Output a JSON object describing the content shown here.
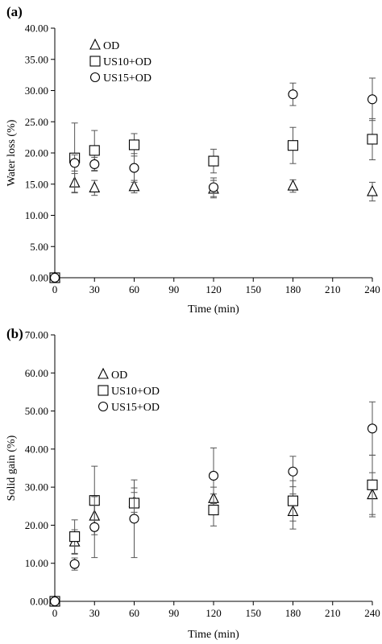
{
  "chart_data": [
    {
      "type": "scatter",
      "panel_label": "(a)",
      "xlabel": "Time (min)",
      "ylabel": "Water loss (%)",
      "xlim": [
        0,
        240
      ],
      "ylim": [
        0,
        40
      ],
      "xticks": [
        0,
        30,
        60,
        90,
        120,
        150,
        180,
        210,
        240
      ],
      "yticks": [
        "0.00",
        "5.00",
        "10.00",
        "15.00",
        "20.00",
        "25.00",
        "30.00",
        "35.00",
        "40.00"
      ],
      "legend_position": "top-left",
      "grid": false,
      "series": [
        {
          "name": "OD",
          "marker": "triangle",
          "x": [
            0,
            15,
            30,
            60,
            120,
            180,
            240
          ],
          "y": [
            0,
            15.2,
            14.4,
            14.6,
            14.2,
            14.7,
            13.8
          ],
          "err": [
            0,
            1.5,
            1.2,
            1.0,
            1.4,
            1.0,
            1.5
          ]
        },
        {
          "name": "US10+OD",
          "marker": "square",
          "x": [
            0,
            15,
            30,
            60,
            120,
            180,
            240
          ],
          "y": [
            0,
            19.2,
            20.4,
            21.3,
            18.7,
            21.2,
            22.2
          ],
          "err": [
            0,
            5.6,
            3.2,
            1.8,
            1.9,
            2.9,
            3.3
          ]
        },
        {
          "name": "US15+OD",
          "marker": "circle",
          "x": [
            0,
            15,
            30,
            60,
            120,
            180,
            240
          ],
          "y": [
            0,
            18.4,
            18.2,
            17.6,
            14.5,
            29.4,
            28.6
          ],
          "err": [
            0,
            1.3,
            1.1,
            2.3,
            1.5,
            1.8,
            3.4
          ]
        }
      ]
    },
    {
      "type": "scatter",
      "panel_label": "(b)",
      "xlabel": "Time (min)",
      "ylabel": "Solid gain (%)",
      "xlim": [
        0,
        240
      ],
      "ylim": [
        0,
        70
      ],
      "xticks": [
        0,
        30,
        60,
        90,
        120,
        150,
        180,
        210,
        240
      ],
      "yticks": [
        "0.00",
        "10.00",
        "20.00",
        "30.00",
        "40.00",
        "50.00",
        "60.00",
        "70.00"
      ],
      "legend_position": "top-left",
      "grid": false,
      "series": [
        {
          "name": "OD",
          "marker": "triangle",
          "x": [
            0,
            15,
            30,
            60,
            120,
            180,
            240
          ],
          "y": [
            0,
            15.6,
            22.4,
            26.0,
            27.0,
            23.6,
            28.0
          ],
          "err": [
            0,
            3.2,
            3.8,
            2.6,
            3.0,
            4.6,
            5.8
          ]
        },
        {
          "name": "US10+OD",
          "marker": "square",
          "x": [
            0,
            15,
            30,
            60,
            120,
            180,
            240
          ],
          "y": [
            0,
            17.0,
            26.5,
            25.8,
            24.0,
            26.4,
            30.6
          ],
          "err": [
            0,
            4.4,
            9.0,
            4.0,
            4.2,
            5.3,
            7.8
          ]
        },
        {
          "name": "US15+OD",
          "marker": "circle",
          "x": [
            0,
            15,
            30,
            60,
            120,
            180,
            240
          ],
          "y": [
            0,
            9.8,
            19.5,
            21.7,
            33.0,
            34.1,
            45.4
          ],
          "err": [
            0,
            1.6,
            8.0,
            10.2,
            7.3,
            4.0,
            7.0
          ]
        }
      ]
    }
  ]
}
